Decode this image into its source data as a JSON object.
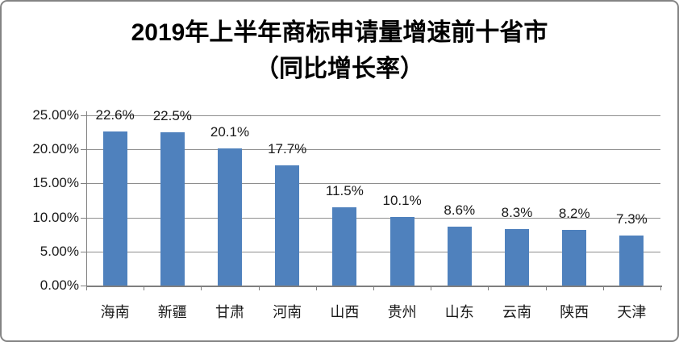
{
  "title": {
    "line1": "2019年上半年商标申请量增速前十省市",
    "line2": "（同比增长率）"
  },
  "chart_data": {
    "type": "bar",
    "title": "2019年上半年商标申请量增速前十省市（同比增长率）",
    "categories": [
      "海南",
      "新疆",
      "甘肃",
      "河南",
      "山西",
      "贵州",
      "山东",
      "云南",
      "陕西",
      "天津"
    ],
    "values": [
      22.6,
      22.5,
      20.1,
      17.7,
      11.5,
      10.1,
      8.6,
      8.3,
      8.2,
      7.3
    ],
    "data_labels": [
      "22.6%",
      "22.5%",
      "20.1%",
      "17.7%",
      "11.5%",
      "10.1%",
      "8.6%",
      "8.3%",
      "8.2%",
      "7.3%"
    ],
    "y_tick_labels": [
      "0.00%",
      "5.00%",
      "10.00%",
      "15.00%",
      "20.00%",
      "25.00%"
    ],
    "ylim": [
      0,
      25
    ],
    "y_step": 5,
    "xlabel": "",
    "ylabel": "",
    "grid": true,
    "legend": false,
    "bar_color": "#4F81BD",
    "grid_color": "#8E8E8E",
    "axis_color": "#7F7F7F",
    "label_color": "#1A1A1A"
  }
}
